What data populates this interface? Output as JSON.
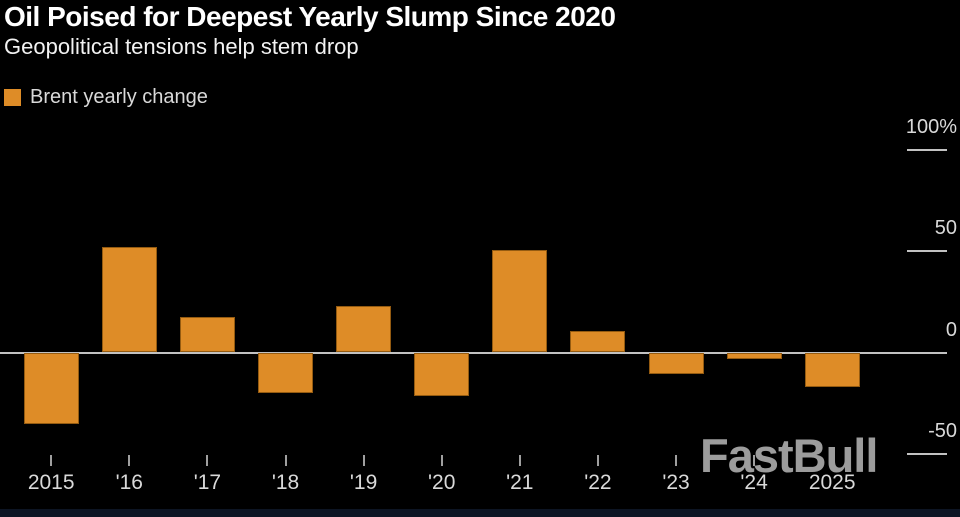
{
  "header": {
    "title": "Oil Poised for Deepest Yearly Slump Since 2020",
    "subtitle": "Geopolitical tensions help stem drop"
  },
  "legend": {
    "label": "Brent yearly change"
  },
  "watermark": {
    "text": "FastBull"
  },
  "colors": {
    "background": "#000000",
    "bar": "#de8c27",
    "title_text": "#ffffff",
    "subtitle_text": "#f2f2f2",
    "axis_text": "#d9d9d9",
    "zero_line": "#c2c2c2",
    "grid_tick": "#c2c2c2",
    "x_tick": "#9f9f9f",
    "watermark_text": "#9c9c9c",
    "bottom_strip": "#0d1524"
  },
  "chart_data": {
    "type": "bar",
    "title": "Oil Poised for Deepest Yearly Slump Since 2020",
    "subtitle": "Geopolitical tensions help stem drop",
    "series_name": "Brent yearly change",
    "categories": [
      "2015",
      "'16",
      "'17",
      "'18",
      "'19",
      "'20",
      "'21",
      "'22",
      "'23",
      "'24",
      "2025"
    ],
    "values": [
      -35,
      52,
      17.5,
      -20,
      23,
      -21.5,
      50.5,
      10.5,
      -10.5,
      -3,
      -17
    ],
    "unit": "%",
    "xlabel": "",
    "ylabel": "",
    "y_ticks": [
      100,
      50,
      0,
      -50
    ],
    "y_tick_labels": [
      "100%",
      "50",
      "0",
      "-50"
    ],
    "ylim": [
      -60,
      115
    ],
    "grid": "short right-edge tick dashes, full-width zero line",
    "legend_position": "top-left",
    "bar_color": "#de8c27",
    "background_color": "#000000"
  }
}
